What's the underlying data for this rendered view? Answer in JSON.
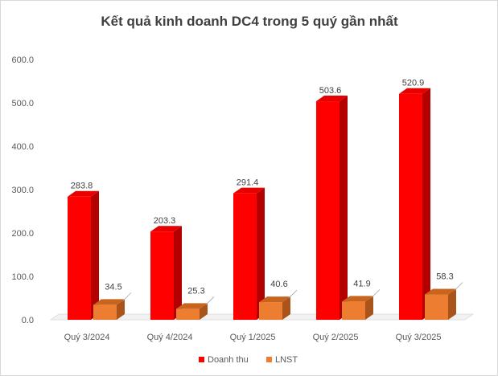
{
  "chart_data": {
    "type": "bar",
    "title": "Kết quả kinh doanh DC4 trong 5 quý gần nhất",
    "xlabel": "",
    "ylabel": "",
    "categories": [
      "Quý 3/2024",
      "Quý 4/2024",
      "Quý 1/2025",
      "Quý 2/2025",
      "Quý 3/2025"
    ],
    "series": [
      {
        "name": "Doanh thu",
        "values": [
          283.8,
          203.3,
          291.4,
          503.6,
          520.9
        ],
        "labels": [
          "283.8",
          "203.3",
          "291.4",
          "503.6",
          "520.9"
        ],
        "color": "#ff0000",
        "side_color": "#b30000",
        "top_color": "#e60000"
      },
      {
        "name": "LNST",
        "values": [
          34.5,
          25.3,
          40.6,
          41.9,
          58.3
        ],
        "labels": [
          "34.5",
          "25.3",
          "40.6",
          "41.9",
          "58.3"
        ],
        "color": "#ed7d31",
        "side_color": "#a8541b",
        "top_color": "#c9641f"
      }
    ],
    "ylim": [
      0,
      600
    ],
    "yticks": [
      "0.0",
      "100.0",
      "200.0",
      "300.0",
      "400.0",
      "500.0",
      "600.0"
    ],
    "grid": false,
    "legend_position": "bottom"
  }
}
